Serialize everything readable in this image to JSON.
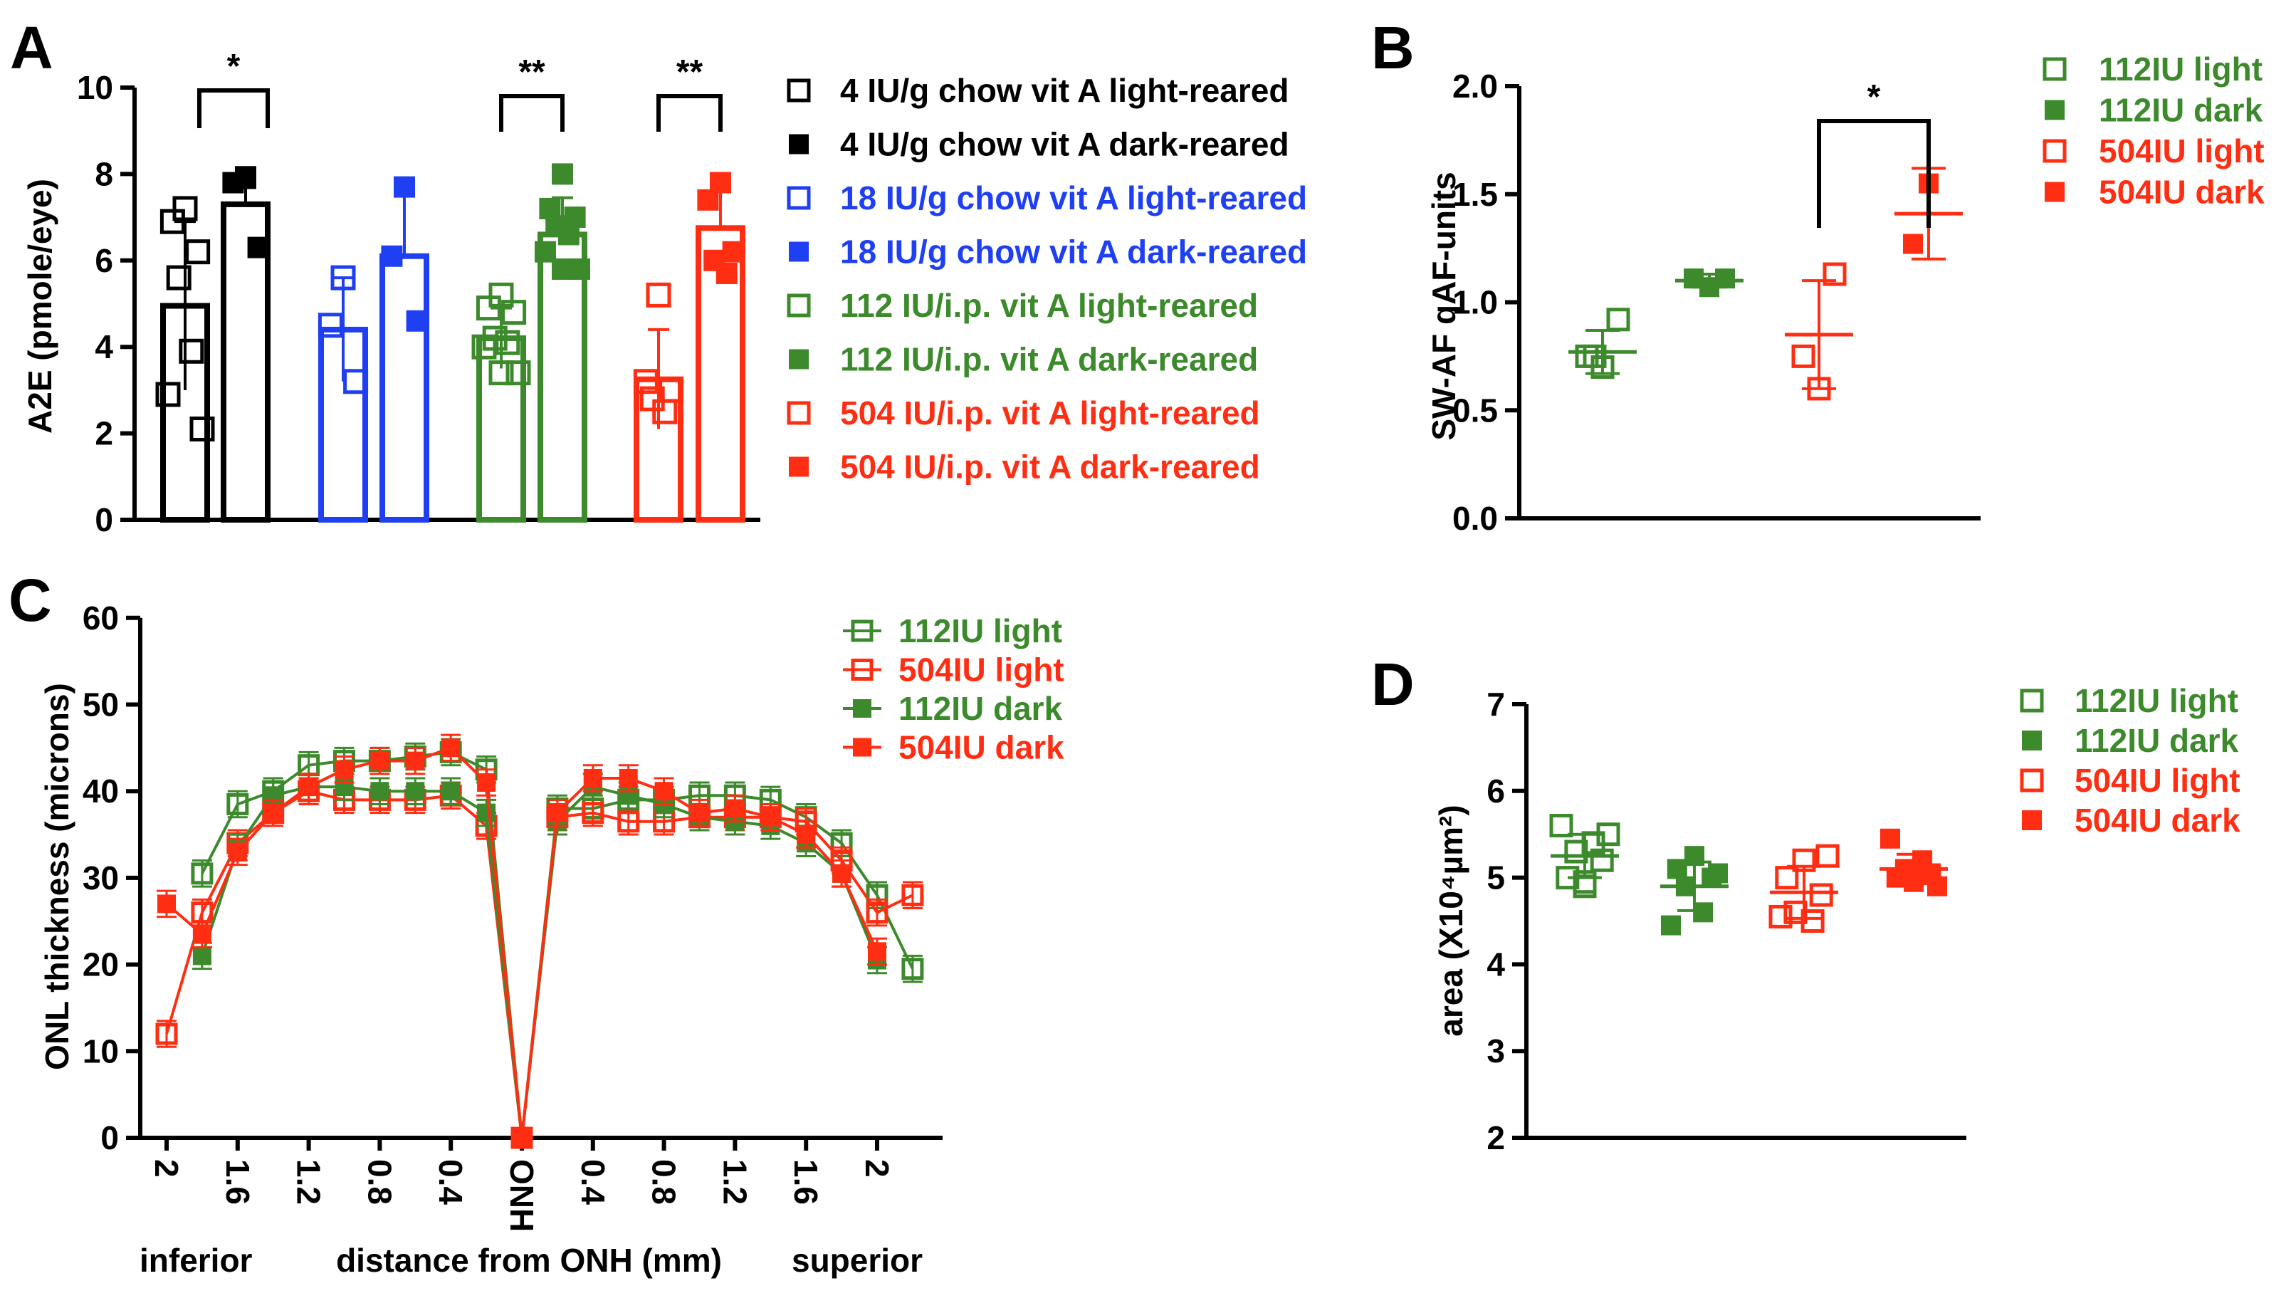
{
  "colors": {
    "black": "#000000",
    "blue": "#1f3ff2",
    "green": "#3c8a2c",
    "red": "#ff2d12"
  },
  "chart_data": [
    {
      "panel": "A",
      "type": "bar",
      "ylabel": "A2E (pmole/eye)",
      "ylim": [
        0,
        10
      ],
      "yticks": [
        "0",
        "2",
        "4",
        "6",
        "8",
        "10"
      ],
      "groups": [
        {
          "legend": "4 IU/g chow vit A light-reared",
          "color": "black",
          "filled": false,
          "mean": 4.95,
          "sd": 1.95,
          "points": [
            7.2,
            6.9,
            6.2,
            5.6,
            3.9,
            2.9,
            2.1
          ]
        },
        {
          "legend": "4 IU/g chow vit A dark-reared",
          "color": "black",
          "filled": true,
          "mean": 7.3,
          "sd": 0.85,
          "points": [
            7.9,
            7.8,
            6.3
          ]
        },
        {
          "legend": "18 IU/g chow vit A light-reared",
          "color": "blue",
          "filled": false,
          "mean": 4.4,
          "sd": 1.2,
          "points": [
            5.6,
            4.5,
            3.2
          ]
        },
        {
          "legend": "18 IU/g chow vit A dark-reared",
          "color": "blue",
          "filled": true,
          "mean": 6.1,
          "sd": 1.55,
          "points": [
            7.7,
            6.1,
            4.6
          ]
        },
        {
          "legend": "112 IU/i.p. vit A light-reared",
          "color": "green",
          "filled": false,
          "mean": 4.2,
          "sd": 0.7,
          "points": [
            5.2,
            4.9,
            4.8,
            4.2,
            4.1,
            4.0,
            3.4,
            3.4
          ]
        },
        {
          "legend": "112 IU/i.p. vit A dark-reared",
          "color": "green",
          "filled": true,
          "mean": 6.6,
          "sd": 0.85,
          "points": [
            8.0,
            7.2,
            7.0,
            6.8,
            6.6,
            6.2,
            5.8,
            5.8
          ]
        },
        {
          "legend": "504 IU/i.p. vit A light-reared",
          "color": "red",
          "filled": false,
          "mean": 3.25,
          "sd": 1.15,
          "points": [
            5.2,
            3.2,
            3.0,
            2.8,
            2.5
          ]
        },
        {
          "legend": "504 IU/i.p. vit A dark-reared",
          "color": "red",
          "filled": true,
          "mean": 6.75,
          "sd": 0.85,
          "points": [
            7.8,
            7.4,
            6.2,
            6.0,
            5.7
          ]
        }
      ],
      "significance": [
        {
          "between": [
            0,
            1
          ],
          "label": "*"
        },
        {
          "between": [
            4,
            5
          ],
          "label": "**"
        },
        {
          "between": [
            6,
            7
          ],
          "label": "**"
        }
      ]
    },
    {
      "panel": "B",
      "type": "scatter",
      "ylabel": "SW-AF qAF-units",
      "ylim": [
        0,
        2
      ],
      "yticks": [
        "0.0",
        "0.5",
        "1.0",
        "1.5",
        "2.0"
      ],
      "groups": [
        {
          "legend": "112IU light",
          "color": "green",
          "filled": false,
          "mean": 0.77,
          "sd": 0.1,
          "points": [
            0.7,
            0.75,
            0.92,
            0.75
          ]
        },
        {
          "legend": "112IU dark",
          "color": "green",
          "filled": true,
          "mean": 1.1,
          "sd": 0.03,
          "points": [
            1.07,
            1.11,
            1.11
          ]
        },
        {
          "legend": "504IU light",
          "color": "red",
          "filled": false,
          "mean": 0.85,
          "sd": 0.25,
          "points": [
            0.6,
            0.75,
            1.13
          ]
        },
        {
          "legend": "504IU dark",
          "color": "red",
          "filled": true,
          "mean": 1.41,
          "sd": 0.21,
          "points": [
            1.55,
            1.27
          ]
        }
      ],
      "significance": [
        {
          "between": [
            2,
            3
          ],
          "label": "*"
        }
      ]
    },
    {
      "panel": "C",
      "type": "line",
      "ylabel": "ONL thickness (microns)",
      "xlabel": "distance from ONH (mm)",
      "xlabel_left": "inferior",
      "xlabel_right": "superior",
      "ylim": [
        0,
        60
      ],
      "yticks": [
        "0",
        "10",
        "20",
        "30",
        "40",
        "50",
        "60"
      ],
      "xticks": [
        "2",
        "1.6",
        "1.2",
        "0.8",
        "0.4",
        "ONH",
        "0.4",
        "0.8",
        "1.2",
        "1.6",
        "2"
      ],
      "sem": 1.5,
      "series": [
        {
          "name": "112IU light",
          "color": "green",
          "filled": false,
          "values": [
            null,
            30.5,
            38.5,
            40,
            43,
            43.5,
            43.5,
            44,
            44.5,
            42.5,
            0,
            38,
            38,
            39,
            39,
            39.5,
            39.5,
            39,
            37,
            34,
            28,
            19.5
          ]
        },
        {
          "name": "504IU light",
          "color": "red",
          "filled": false,
          "values": [
            12,
            26,
            34,
            37.5,
            40,
            39,
            39,
            39,
            39.5,
            36,
            0,
            37,
            37.5,
            36.5,
            36.5,
            37,
            37,
            37,
            36.5,
            32,
            26,
            28
          ]
        },
        {
          "name": "112IU dark",
          "color": "green",
          "filled": true,
          "values": [
            null,
            21,
            33.5,
            39.5,
            40.5,
            40.5,
            40,
            40,
            40,
            37.5,
            0,
            36.5,
            40.5,
            39.5,
            38.5,
            37,
            36.5,
            36,
            34,
            30.5,
            20.5,
            null
          ]
        },
        {
          "name": "504IU dark",
          "color": "red",
          "filled": true,
          "values": [
            27,
            23.5,
            33,
            37.5,
            40.5,
            42.5,
            43.5,
            43.5,
            45,
            41,
            0,
            37.5,
            41.5,
            41.5,
            40,
            37.5,
            38,
            37,
            35,
            30.5,
            21.5,
            null
          ]
        }
      ]
    },
    {
      "panel": "D",
      "type": "scatter",
      "ylabel": "area (X10⁴µm²)",
      "ylim": [
        2,
        7
      ],
      "yticks": [
        "2",
        "3",
        "4",
        "5",
        "6",
        "7"
      ],
      "groups": [
        {
          "legend": "112IU light",
          "color": "green",
          "filled": false,
          "mean": 5.25,
          "sd": 0.25,
          "points": [
            4.9,
            5.0,
            5.2,
            5.3,
            5.4,
            5.6,
            5.5,
            4.95
          ]
        },
        {
          "legend": "112IU dark",
          "color": "green",
          "filled": true,
          "mean": 4.9,
          "sd": 0.28,
          "points": [
            5.25,
            5.1,
            5.0,
            4.9,
            4.6,
            4.45,
            5.05
          ]
        },
        {
          "legend": "504IU light",
          "color": "red",
          "filled": false,
          "mean": 4.83,
          "sd": 0.3,
          "points": [
            5.2,
            5.0,
            4.8,
            4.6,
            4.5,
            4.55,
            5.25
          ]
        },
        {
          "legend": "504IU dark",
          "color": "red",
          "filled": true,
          "mean": 5.1,
          "sd": 0.17,
          "points": [
            4.95,
            5.0,
            5.05,
            5.1,
            5.2,
            5.45,
            4.9,
            5.0
          ]
        }
      ]
    }
  ]
}
